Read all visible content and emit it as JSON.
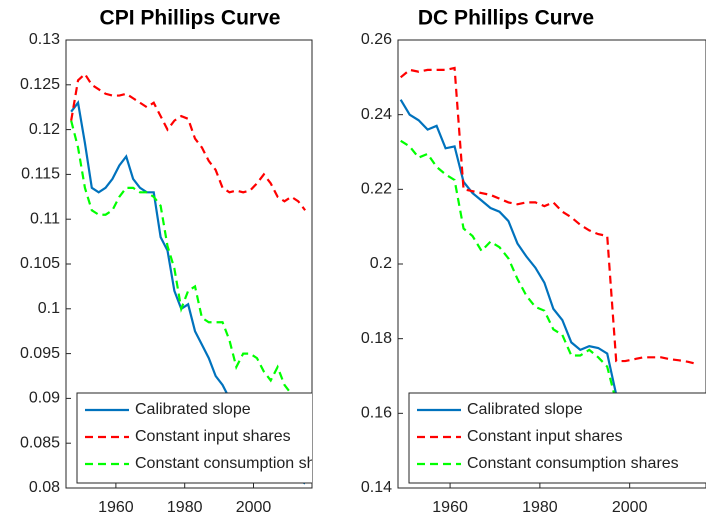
{
  "chart_data": [
    {
      "type": "line",
      "title": "CPI Phillips Curve",
      "x": [
        1947,
        1949,
        1951,
        1953,
        1955,
        1957,
        1959,
        1961,
        1963,
        1965,
        1967,
        1969,
        1971,
        1973,
        1975,
        1977,
        1979,
        1981,
        1983,
        1985,
        1987,
        1989,
        1991,
        1993,
        1995,
        1997,
        1999,
        2001,
        2003,
        2005,
        2007,
        2009,
        2011,
        2013,
        2015
      ],
      "xlim": [
        1945.5,
        2017
      ],
      "xticks": [
        1960,
        1980,
        2000
      ],
      "ylim": [
        0.08,
        0.13
      ],
      "yticks": [
        0.08,
        0.085,
        0.09,
        0.095,
        0.1,
        0.105,
        0.11,
        0.115,
        0.12,
        0.125,
        0.13
      ],
      "legend": "southwest",
      "series": [
        {
          "name": "Calibrated slope",
          "color": "#0072bd",
          "dashed": false,
          "values": [
            0.122,
            0.123,
            0.1185,
            0.1135,
            0.113,
            0.1135,
            0.1145,
            0.116,
            0.117,
            0.1145,
            0.1135,
            0.113,
            0.113,
            0.108,
            0.1065,
            0.102,
            0.1,
            0.1005,
            0.0975,
            0.096,
            0.0945,
            0.0925,
            0.0915,
            0.09,
            0.0895,
            0.088,
            0.087,
            0.086,
            0.085,
            0.084,
            0.083,
            0.082,
            0.0815,
            0.081,
            0.0805
          ]
        },
        {
          "name": "Constant input shares",
          "color": "#ff0000",
          "dashed": true,
          "values": [
            0.121,
            0.1255,
            0.1262,
            0.125,
            0.1245,
            0.124,
            0.1238,
            0.1238,
            0.124,
            0.1235,
            0.123,
            0.1225,
            0.123,
            0.1215,
            0.12,
            0.121,
            0.1215,
            0.1212,
            0.119,
            0.118,
            0.1165,
            0.1155,
            0.1135,
            0.113,
            0.1132,
            0.113,
            0.1132,
            0.114,
            0.115,
            0.114,
            0.1125,
            0.112,
            0.1125,
            0.112,
            0.111
          ]
        },
        {
          "name": "Constant consumption shares",
          "color": "#00ff00",
          "dashed": true,
          "values": [
            0.121,
            0.118,
            0.1135,
            0.111,
            0.1105,
            0.1105,
            0.111,
            0.1125,
            0.1135,
            0.1135,
            0.113,
            0.113,
            0.1125,
            0.1115,
            0.107,
            0.1045,
            0.1,
            0.102,
            0.1025,
            0.099,
            0.0985,
            0.0985,
            0.0985,
            0.0965,
            0.0935,
            0.095,
            0.095,
            0.0945,
            0.093,
            0.092,
            0.0935,
            0.0915,
            0.0905,
            0.09,
            0.0895
          ]
        }
      ]
    },
    {
      "type": "line",
      "title": "DC Phillips Curve",
      "x": [
        1949,
        1951,
        1953,
        1955,
        1957,
        1959,
        1961,
        1963,
        1965,
        1967,
        1969,
        1971,
        1973,
        1975,
        1977,
        1979,
        1981,
        1983,
        1985,
        1987,
        1989,
        1991,
        1993,
        1995,
        1997,
        1999,
        2001,
        2003,
        2005,
        2007,
        2009,
        2011,
        2013,
        2015
      ],
      "xlim": [
        1948.4,
        2017
      ],
      "xticks": [
        1960,
        1980,
        2000
      ],
      "ylim": [
        0.14,
        0.26
      ],
      "yticks": [
        0.14,
        0.16,
        0.18,
        0.2,
        0.22,
        0.24,
        0.26
      ],
      "legend": "southwest",
      "series": [
        {
          "name": "Calibrated slope",
          "color": "#0072bd",
          "dashed": false,
          "values": [
            0.244,
            0.24,
            0.2385,
            0.236,
            0.237,
            0.231,
            0.2315,
            0.222,
            0.219,
            0.217,
            0.215,
            0.214,
            0.2115,
            0.2055,
            0.202,
            0.199,
            0.195,
            0.188,
            0.185,
            0.179,
            0.177,
            0.178,
            0.1775,
            0.176,
            0.165,
            0.1645,
            0.164,
            0.1645,
            0.164,
            0.1635,
            0.163,
            0.1625,
            0.162,
            0.1615
          ]
        },
        {
          "name": "Constant input shares",
          "color": "#ff0000",
          "dashed": true,
          "values": [
            0.25,
            0.252,
            0.2515,
            0.252,
            0.252,
            0.252,
            0.2525,
            0.22,
            0.2195,
            0.219,
            0.2185,
            0.2175,
            0.2165,
            0.216,
            0.2165,
            0.2165,
            0.2155,
            0.2165,
            0.214,
            0.2125,
            0.2105,
            0.209,
            0.208,
            0.2075,
            0.174,
            0.174,
            0.1745,
            0.175,
            0.175,
            0.175,
            0.1745,
            0.1742,
            0.1738,
            0.1732
          ]
        },
        {
          "name": "Constant consumption shares",
          "color": "#00ff00",
          "dashed": true,
          "values": [
            0.233,
            0.2315,
            0.2285,
            0.2295,
            0.226,
            0.224,
            0.2225,
            0.2095,
            0.2075,
            0.2035,
            0.206,
            0.2045,
            0.2015,
            0.196,
            0.1915,
            0.1885,
            0.1875,
            0.1825,
            0.181,
            0.1755,
            0.1755,
            0.177,
            0.175,
            0.1725,
            0.163,
            0.161,
            0.16,
            0.159,
            0.158,
            0.157,
            0.156,
            0.155,
            0.154,
            0.153
          ]
        }
      ]
    }
  ]
}
